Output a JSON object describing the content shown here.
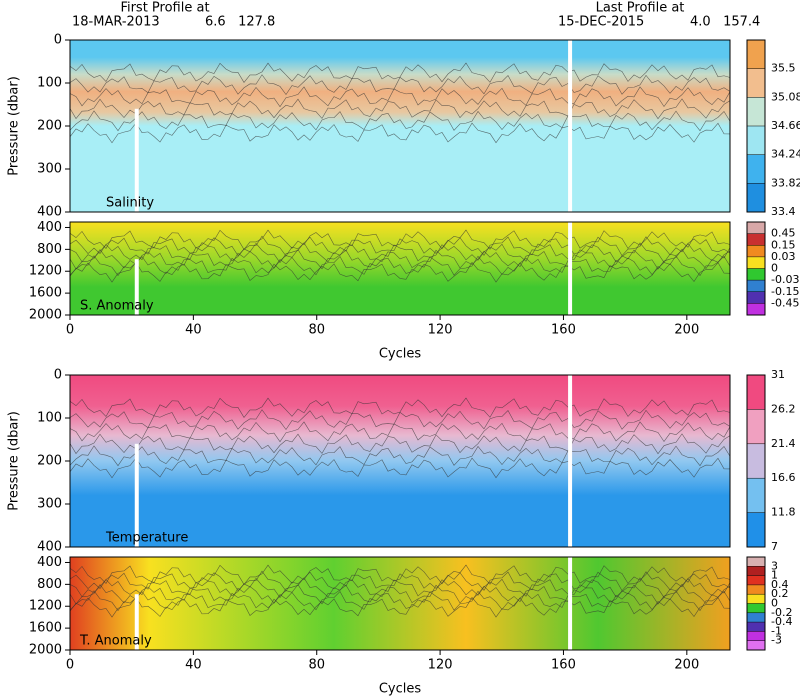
{
  "header": {
    "first_label": "First Profile at",
    "first_date": "18-MAR-2013",
    "first_pos": "6.6   127.8",
    "last_label": "Last Profile at",
    "last_date": "15-DEC-2015",
    "last_pos": "4.0   157.4"
  },
  "chart_data": [
    {
      "type": "heatmap",
      "label": "Salinity",
      "ylabel": "Pressure (dbar)",
      "xlim": [
        0,
        214
      ],
      "ylim": [
        0,
        400
      ],
      "yticks": [
        0,
        100,
        200,
        300,
        400
      ],
      "colorbar": {
        "clim": [
          33.4,
          35.92
        ],
        "ticks": [
          33.4,
          33.82,
          34.24,
          34.66,
          35.08,
          35.5
        ],
        "colors": [
          "#1f8fe0",
          "#3fb2ee",
          "#9ee6f2",
          "#c6e6d6",
          "#f2be8e",
          "#f0a24e"
        ]
      }
    },
    {
      "type": "heatmap",
      "label": "S. Anomaly",
      "xlabel": "Cycles",
      "xlim": [
        0,
        214
      ],
      "ylim": [
        300,
        2000
      ],
      "yticks": [
        400,
        800,
        1200,
        1600,
        2000
      ],
      "xticks": [
        0,
        40,
        80,
        120,
        160,
        200
      ],
      "colorbar": {
        "ticks": [
          0.45,
          0.15,
          0.03,
          0,
          -0.03,
          -0.15,
          -0.45
        ],
        "colors": [
          "#d8a8a8",
          "#c83030",
          "#f08a20",
          "#f8e020",
          "#30c830",
          "#3080d0",
          "#5030b0",
          "#c030e0"
        ]
      }
    },
    {
      "type": "heatmap",
      "label": "Temperature",
      "ylabel": "Pressure (dbar)",
      "xlim": [
        0,
        214
      ],
      "ylim": [
        0,
        400
      ],
      "yticks": [
        0,
        100,
        200,
        300,
        400
      ],
      "colorbar": {
        "clim": [
          7,
          31
        ],
        "ticks": [
          7,
          11.8,
          16.6,
          21.4,
          26.2,
          31
        ],
        "colors": [
          "#2090e8",
          "#74c0f0",
          "#c8bce0",
          "#f0a0c0",
          "#f04a80"
        ]
      }
    },
    {
      "type": "heatmap",
      "label": "T. Anomaly",
      "xlabel": "Cycles",
      "xlim": [
        0,
        214
      ],
      "ylim": [
        300,
        2000
      ],
      "yticks": [
        400,
        800,
        1200,
        1600,
        2000
      ],
      "xticks": [
        0,
        40,
        80,
        120,
        160,
        200
      ],
      "colorbar": {
        "ticks": [
          3,
          1,
          0.4,
          0.2,
          0,
          -0.2,
          -0.4,
          -1,
          -3
        ],
        "colors": [
          "#d8b0b0",
          "#b02020",
          "#e03020",
          "#f08a20",
          "#f8e020",
          "#30c830",
          "#3080d0",
          "#5030b0",
          "#c030e0",
          "#e070f0"
        ]
      }
    }
  ]
}
